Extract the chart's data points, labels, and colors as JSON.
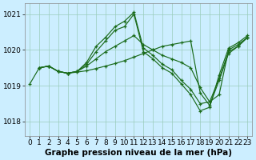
{
  "xlabel": "Graphe pression niveau de la mer (hPa)",
  "bg_color": "#cceeff",
  "grid_color": "#99ccbb",
  "line_color": "#1a6b1a",
  "marker": "+",
  "xlim": [
    -0.5,
    23.5
  ],
  "ylim": [
    1017.6,
    1021.3
  ],
  "yticks": [
    1018,
    1019,
    1020,
    1021
  ],
  "xticks": [
    0,
    1,
    2,
    3,
    4,
    5,
    6,
    7,
    8,
    9,
    10,
    11,
    12,
    13,
    14,
    15,
    16,
    17,
    18,
    19,
    20,
    21,
    22,
    23
  ],
  "lines": [
    {
      "x": [
        0,
        1,
        2,
        3,
        4,
        5,
        6,
        7,
        8,
        9,
        10,
        11,
        12,
        13,
        14,
        15,
        16,
        17,
        18,
        19,
        20,
        21,
        22,
        23
      ],
      "y": [
        1019.05,
        1019.5,
        1019.55,
        1019.4,
        1019.35,
        1019.4,
        1019.65,
        1020.1,
        1020.35,
        1020.65,
        1020.8,
        1021.05,
        1020.05,
        1019.85,
        1019.6,
        1019.45,
        1019.15,
        1018.9,
        1018.5,
        1018.55,
        1018.75,
        1020.0,
        1020.15,
        1020.35
      ]
    },
    {
      "x": [
        1,
        2,
        3,
        4,
        5,
        6,
        7,
        8,
        9,
        10,
        11,
        12,
        13,
        14,
        15,
        16,
        17,
        18,
        19,
        20,
        21,
        22,
        23
      ],
      "y": [
        1019.5,
        1019.55,
        1019.4,
        1019.35,
        1019.4,
        1019.6,
        1019.95,
        1020.25,
        1020.55,
        1020.65,
        1021.0,
        1019.95,
        1019.75,
        1019.5,
        1019.35,
        1019.05,
        1018.75,
        1018.3,
        1018.4,
        1019.3,
        1020.05,
        1020.2,
        1020.4
      ]
    },
    {
      "x": [
        1,
        2,
        3,
        4,
        5,
        6,
        7,
        8,
        9,
        10,
        11,
        12,
        13,
        14,
        15,
        16,
        17,
        18,
        19,
        20,
        21,
        22,
        23
      ],
      "y": [
        1019.5,
        1019.55,
        1019.4,
        1019.35,
        1019.4,
        1019.55,
        1019.75,
        1019.95,
        1020.1,
        1020.25,
        1020.4,
        1020.15,
        1020.0,
        1019.85,
        1019.75,
        1019.65,
        1019.5,
        1018.95,
        1018.55,
        1019.2,
        1019.95,
        1020.1,
        1020.35
      ]
    },
    {
      "x": [
        1,
        2,
        3,
        4,
        5,
        6,
        7,
        8,
        9,
        10,
        11,
        12,
        13,
        14,
        15,
        16,
        17,
        18,
        19,
        20,
        21,
        22,
        23
      ],
      "y": [
        1019.5,
        1019.55,
        1019.4,
        1019.35,
        1019.38,
        1019.42,
        1019.48,
        1019.55,
        1019.62,
        1019.7,
        1019.8,
        1019.9,
        1020.0,
        1020.1,
        1020.15,
        1020.2,
        1020.25,
        1018.8,
        1018.45,
        1019.15,
        1019.9,
        1020.1,
        1020.35
      ]
    }
  ],
  "label_fontsize": 7.5,
  "tick_fontsize": 6.5,
  "lw": 0.85,
  "ms": 3.0
}
